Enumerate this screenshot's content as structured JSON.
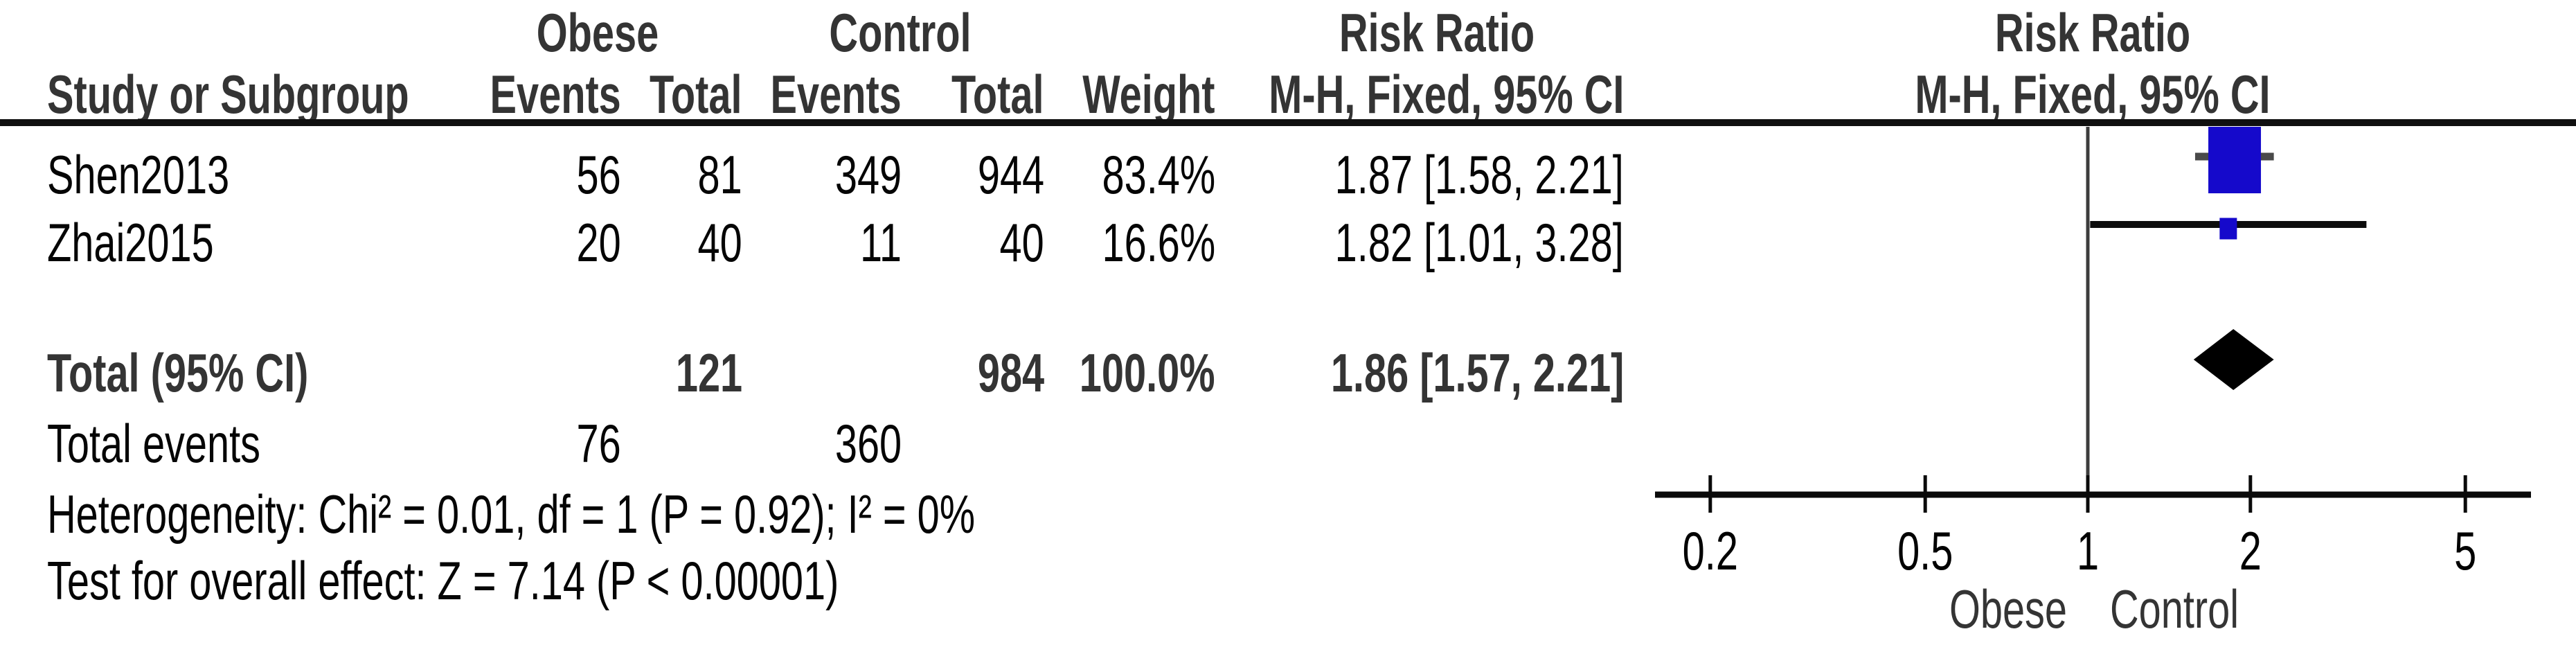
{
  "table": {
    "group_headers": {
      "obese": "Obese",
      "control": "Control",
      "risk_ratio_left": "Risk Ratio",
      "risk_ratio_right": "Risk Ratio"
    },
    "column_headers": {
      "study": "Study or Subgroup",
      "obese_events": "Events",
      "obese_total": "Total",
      "control_events": "Events",
      "control_total": "Total",
      "weight": "Weight",
      "mh_left": "M-H, Fixed, 95% CI",
      "mh_right": "M-H, Fixed, 95% CI"
    },
    "rows": [
      {
        "study": "Shen2013",
        "obese_events": "56",
        "obese_total": "81",
        "control_events": "349",
        "control_total": "944",
        "weight": "83.4%",
        "rr_ci": "1.87 [1.58, 2.21]"
      },
      {
        "study": "Zhai2015",
        "obese_events": "20",
        "obese_total": "40",
        "control_events": "11",
        "control_total": "40",
        "weight": "16.6%",
        "rr_ci": "1.82 [1.01, 3.28]"
      }
    ],
    "total_row": {
      "label": "Total (95% CI)",
      "obese_total": "121",
      "control_total": "984",
      "weight": "100.0%",
      "rr_ci": "1.86 [1.57, 2.21]"
    },
    "total_events_row": {
      "label": "Total events",
      "obese_events": "76",
      "control_events": "360"
    },
    "heterogeneity_line": "Heterogeneity: Chi² = 0.01, df = 1 (P = 0.92); I² = 0%",
    "overall_effect_line": "Test for overall effect: Z = 7.14 (P < 0.00001)"
  },
  "chart_data": {
    "type": "forest",
    "effect_measure": "Risk Ratio",
    "method": "M-H, Fixed, 95% CI",
    "x_scale": "log",
    "x_ticks": [
      0.2,
      0.5,
      1,
      2,
      5
    ],
    "x_tick_labels": [
      "0.2",
      "0.5",
      "1",
      "2",
      "5"
    ],
    "x_axis_labels": {
      "left": "Obese",
      "right": "Control"
    },
    "studies": [
      {
        "name": "Shen2013",
        "rr": 1.87,
        "ci_low": 1.58,
        "ci_high": 2.21,
        "weight_pct": 83.4,
        "obese_events": 56,
        "obese_total": 81,
        "control_events": 349,
        "control_total": 944
      },
      {
        "name": "Zhai2015",
        "rr": 1.82,
        "ci_low": 1.01,
        "ci_high": 3.28,
        "weight_pct": 16.6,
        "obese_events": 20,
        "obese_total": 40,
        "control_events": 11,
        "control_total": 40
      }
    ],
    "total": {
      "label": "Total (95% CI)",
      "rr": 1.86,
      "ci_low": 1.57,
      "ci_high": 2.21,
      "weight_pct": 100.0,
      "obese_total": 121,
      "control_total": 984,
      "obese_events_total": 76,
      "control_events_total": 360
    },
    "heterogeneity": {
      "chi2": 0.01,
      "df": 1,
      "p": 0.92,
      "i2_pct": 0
    },
    "overall_effect": {
      "z": 7.14,
      "p_label": "P < 0.00001"
    },
    "marker_color": "#1509CB",
    "diamond_color": "#000000",
    "axis_color": "#0a0a0a"
  }
}
